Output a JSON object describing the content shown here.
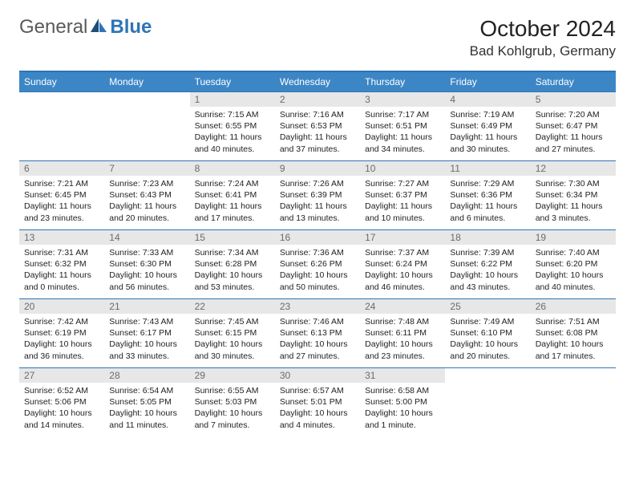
{
  "logo": {
    "text1": "General",
    "text2": "Blue"
  },
  "title": {
    "month": "October 2024",
    "location": "Bad Kohlgrub, Germany"
  },
  "colors": {
    "header_bg": "#3d86c6",
    "header_text": "#ffffff",
    "rule": "#2e75b6",
    "daynum_bg": "#e7e7e7",
    "daynum_text": "#6b6b6b",
    "body_text": "#222222",
    "page_bg": "#ffffff"
  },
  "fonts": {
    "family": "Arial",
    "title_size_pt": 21,
    "location_size_pt": 13,
    "header_size_pt": 9,
    "body_size_pt": 8
  },
  "weekdays": [
    "Sunday",
    "Monday",
    "Tuesday",
    "Wednesday",
    "Thursday",
    "Friday",
    "Saturday"
  ],
  "weeks": [
    [
      {
        "empty": true
      },
      {
        "empty": true
      },
      {
        "day": "1",
        "sunrise": "Sunrise: 7:15 AM",
        "sunset": "Sunset: 6:55 PM",
        "daylight": "Daylight: 11 hours and 40 minutes."
      },
      {
        "day": "2",
        "sunrise": "Sunrise: 7:16 AM",
        "sunset": "Sunset: 6:53 PM",
        "daylight": "Daylight: 11 hours and 37 minutes."
      },
      {
        "day": "3",
        "sunrise": "Sunrise: 7:17 AM",
        "sunset": "Sunset: 6:51 PM",
        "daylight": "Daylight: 11 hours and 34 minutes."
      },
      {
        "day": "4",
        "sunrise": "Sunrise: 7:19 AM",
        "sunset": "Sunset: 6:49 PM",
        "daylight": "Daylight: 11 hours and 30 minutes."
      },
      {
        "day": "5",
        "sunrise": "Sunrise: 7:20 AM",
        "sunset": "Sunset: 6:47 PM",
        "daylight": "Daylight: 11 hours and 27 minutes."
      }
    ],
    [
      {
        "day": "6",
        "sunrise": "Sunrise: 7:21 AM",
        "sunset": "Sunset: 6:45 PM",
        "daylight": "Daylight: 11 hours and 23 minutes."
      },
      {
        "day": "7",
        "sunrise": "Sunrise: 7:23 AM",
        "sunset": "Sunset: 6:43 PM",
        "daylight": "Daylight: 11 hours and 20 minutes."
      },
      {
        "day": "8",
        "sunrise": "Sunrise: 7:24 AM",
        "sunset": "Sunset: 6:41 PM",
        "daylight": "Daylight: 11 hours and 17 minutes."
      },
      {
        "day": "9",
        "sunrise": "Sunrise: 7:26 AM",
        "sunset": "Sunset: 6:39 PM",
        "daylight": "Daylight: 11 hours and 13 minutes."
      },
      {
        "day": "10",
        "sunrise": "Sunrise: 7:27 AM",
        "sunset": "Sunset: 6:37 PM",
        "daylight": "Daylight: 11 hours and 10 minutes."
      },
      {
        "day": "11",
        "sunrise": "Sunrise: 7:29 AM",
        "sunset": "Sunset: 6:36 PM",
        "daylight": "Daylight: 11 hours and 6 minutes."
      },
      {
        "day": "12",
        "sunrise": "Sunrise: 7:30 AM",
        "sunset": "Sunset: 6:34 PM",
        "daylight": "Daylight: 11 hours and 3 minutes."
      }
    ],
    [
      {
        "day": "13",
        "sunrise": "Sunrise: 7:31 AM",
        "sunset": "Sunset: 6:32 PM",
        "daylight": "Daylight: 11 hours and 0 minutes."
      },
      {
        "day": "14",
        "sunrise": "Sunrise: 7:33 AM",
        "sunset": "Sunset: 6:30 PM",
        "daylight": "Daylight: 10 hours and 56 minutes."
      },
      {
        "day": "15",
        "sunrise": "Sunrise: 7:34 AM",
        "sunset": "Sunset: 6:28 PM",
        "daylight": "Daylight: 10 hours and 53 minutes."
      },
      {
        "day": "16",
        "sunrise": "Sunrise: 7:36 AM",
        "sunset": "Sunset: 6:26 PM",
        "daylight": "Daylight: 10 hours and 50 minutes."
      },
      {
        "day": "17",
        "sunrise": "Sunrise: 7:37 AM",
        "sunset": "Sunset: 6:24 PM",
        "daylight": "Daylight: 10 hours and 46 minutes."
      },
      {
        "day": "18",
        "sunrise": "Sunrise: 7:39 AM",
        "sunset": "Sunset: 6:22 PM",
        "daylight": "Daylight: 10 hours and 43 minutes."
      },
      {
        "day": "19",
        "sunrise": "Sunrise: 7:40 AM",
        "sunset": "Sunset: 6:20 PM",
        "daylight": "Daylight: 10 hours and 40 minutes."
      }
    ],
    [
      {
        "day": "20",
        "sunrise": "Sunrise: 7:42 AM",
        "sunset": "Sunset: 6:19 PM",
        "daylight": "Daylight: 10 hours and 36 minutes."
      },
      {
        "day": "21",
        "sunrise": "Sunrise: 7:43 AM",
        "sunset": "Sunset: 6:17 PM",
        "daylight": "Daylight: 10 hours and 33 minutes."
      },
      {
        "day": "22",
        "sunrise": "Sunrise: 7:45 AM",
        "sunset": "Sunset: 6:15 PM",
        "daylight": "Daylight: 10 hours and 30 minutes."
      },
      {
        "day": "23",
        "sunrise": "Sunrise: 7:46 AM",
        "sunset": "Sunset: 6:13 PM",
        "daylight": "Daylight: 10 hours and 27 minutes."
      },
      {
        "day": "24",
        "sunrise": "Sunrise: 7:48 AM",
        "sunset": "Sunset: 6:11 PM",
        "daylight": "Daylight: 10 hours and 23 minutes."
      },
      {
        "day": "25",
        "sunrise": "Sunrise: 7:49 AM",
        "sunset": "Sunset: 6:10 PM",
        "daylight": "Daylight: 10 hours and 20 minutes."
      },
      {
        "day": "26",
        "sunrise": "Sunrise: 7:51 AM",
        "sunset": "Sunset: 6:08 PM",
        "daylight": "Daylight: 10 hours and 17 minutes."
      }
    ],
    [
      {
        "day": "27",
        "sunrise": "Sunrise: 6:52 AM",
        "sunset": "Sunset: 5:06 PM",
        "daylight": "Daylight: 10 hours and 14 minutes."
      },
      {
        "day": "28",
        "sunrise": "Sunrise: 6:54 AM",
        "sunset": "Sunset: 5:05 PM",
        "daylight": "Daylight: 10 hours and 11 minutes."
      },
      {
        "day": "29",
        "sunrise": "Sunrise: 6:55 AM",
        "sunset": "Sunset: 5:03 PM",
        "daylight": "Daylight: 10 hours and 7 minutes."
      },
      {
        "day": "30",
        "sunrise": "Sunrise: 6:57 AM",
        "sunset": "Sunset: 5:01 PM",
        "daylight": "Daylight: 10 hours and 4 minutes."
      },
      {
        "day": "31",
        "sunrise": "Sunrise: 6:58 AM",
        "sunset": "Sunset: 5:00 PM",
        "daylight": "Daylight: 10 hours and 1 minute."
      },
      {
        "empty": true
      },
      {
        "empty": true
      }
    ]
  ]
}
